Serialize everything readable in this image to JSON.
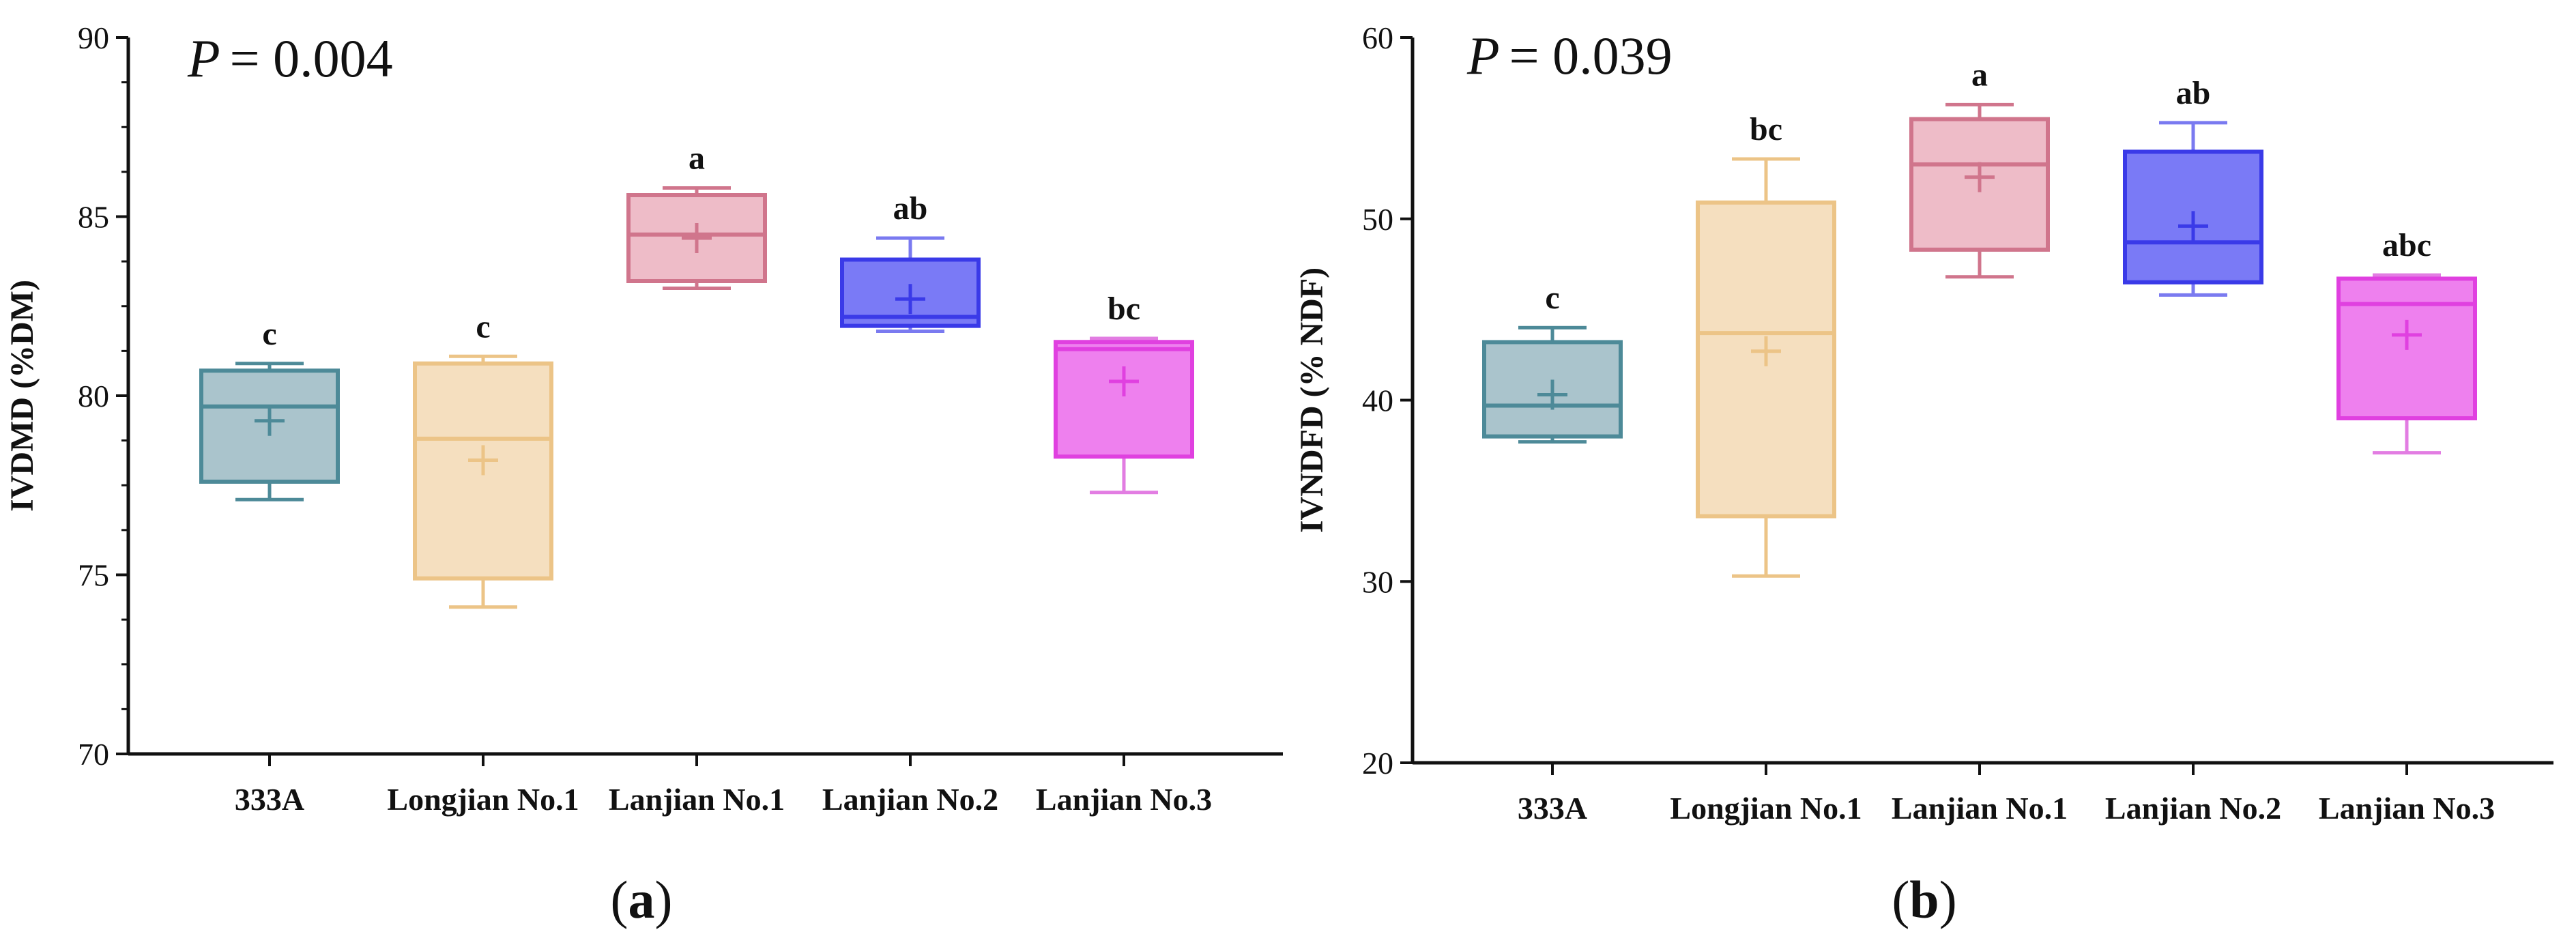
{
  "chart_data": [
    {
      "type": "box",
      "panel_label": "a",
      "p_label": "P",
      "p_text": "= 0.004",
      "ylabel": "IVDMD (%DM)",
      "ylim": [
        70,
        90
      ],
      "yticks": [
        70,
        75,
        80,
        85,
        90
      ],
      "categories": [
        "333A",
        "Longjian No.1",
        "Lanjian No.1",
        "Lanjian No.2",
        "Lanjian No.3"
      ],
      "boxes": [
        {
          "min": 77.1,
          "q1": 77.6,
          "median": 79.7,
          "q3": 80.7,
          "max": 80.9,
          "mean": 79.3,
          "letter": "c"
        },
        {
          "min": 74.1,
          "q1": 74.9,
          "median": 78.8,
          "q3": 80.9,
          "max": 81.1,
          "mean": 78.2,
          "letter": "c"
        },
        {
          "min": 83.0,
          "q1": 83.2,
          "median": 84.5,
          "q3": 85.6,
          "max": 85.8,
          "mean": 84.4,
          "letter": "a"
        },
        {
          "min": 81.8,
          "q1": 81.95,
          "median": 82.2,
          "q3": 83.8,
          "max": 84.4,
          "mean": 82.7,
          "letter": "ab"
        },
        {
          "min": 77.3,
          "q1": 78.3,
          "median": 81.3,
          "q3": 81.5,
          "max": 81.6,
          "mean": 80.4,
          "letter": "bc"
        }
      ]
    },
    {
      "type": "box",
      "panel_label": "b",
      "p_label": "P",
      "p_text": "= 0.039",
      "ylabel": "IVNDFD (% NDF)",
      "ylim": [
        20,
        60
      ],
      "yticks": [
        20,
        30,
        40,
        50,
        60
      ],
      "categories": [
        "333A",
        "Longjian No.1",
        "Lanjian No.1",
        "Lanjian No.2",
        "Lanjian No.3"
      ],
      "boxes": [
        {
          "min": 37.7,
          "q1": 38.0,
          "median": 39.7,
          "q3": 43.2,
          "max": 44.0,
          "mean": 40.3,
          "letter": "c"
        },
        {
          "min": 30.3,
          "q1": 33.6,
          "median": 43.7,
          "q3": 50.9,
          "max": 53.3,
          "mean": 42.7,
          "letter": "bc"
        },
        {
          "min": 46.8,
          "q1": 48.3,
          "median": 53.0,
          "q3": 55.5,
          "max": 56.3,
          "mean": 52.3,
          "letter": "a"
        },
        {
          "min": 45.8,
          "q1": 46.5,
          "median": 48.7,
          "q3": 53.7,
          "max": 55.3,
          "mean": 49.6,
          "letter": "ab"
        },
        {
          "min": 37.1,
          "q1": 39.0,
          "median": 45.3,
          "q3": 46.7,
          "max": 46.9,
          "mean": 43.6,
          "letter": "abc"
        }
      ]
    }
  ],
  "colors": {
    "box_fill": [
      "#aac4cc",
      "#f5dfbf",
      "#eebcc8",
      "#7a7af6",
      "#ee80ee"
    ],
    "box_stroke": [
      "#4d8a98",
      "#ecc487",
      "#d0758c",
      "#3a3ae8",
      "#e040e0"
    ],
    "whisker": [
      "#4d8a98",
      "#ecc487",
      "#d0758c",
      "#7a7af0",
      "#e27de2"
    ]
  }
}
